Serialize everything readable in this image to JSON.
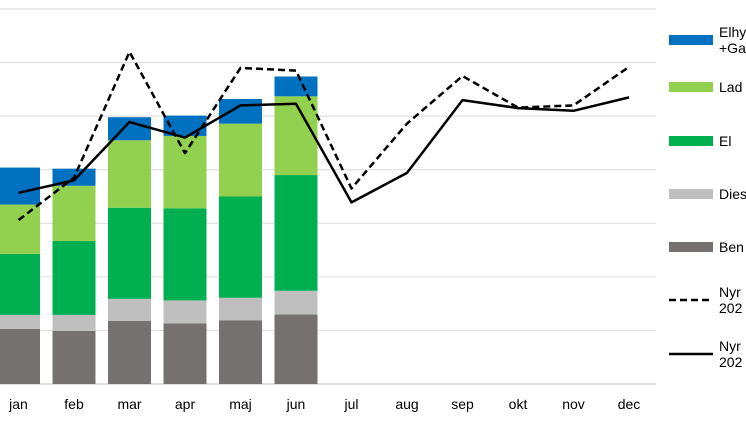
{
  "chart_data": {
    "type": "bar",
    "stacked": true,
    "categories": [
      "jan",
      "feb",
      "mar",
      "apr",
      "maj",
      "jun",
      "jul",
      "aug",
      "sep",
      "okt",
      "nov",
      "dec"
    ],
    "ylim": [
      0,
      7000
    ],
    "grid": true,
    "legend_position": "right",
    "series": [
      {
        "name": "Ben",
        "kind": "bar",
        "color": "#757171",
        "values": [
          1030,
          990,
          1180,
          1130,
          1190,
          1300,
          null,
          null,
          null,
          null,
          null,
          null
        ]
      },
      {
        "name": "Dies",
        "kind": "bar",
        "color": "#bfbfbf",
        "values": [
          260,
          300,
          410,
          430,
          420,
          440,
          null,
          null,
          null,
          null,
          null,
          null
        ]
      },
      {
        "name": "El",
        "kind": "bar",
        "color": "#00b050",
        "values": [
          1140,
          1380,
          1700,
          1720,
          1890,
          2160,
          null,
          null,
          null,
          null,
          null,
          null
        ]
      },
      {
        "name": "Lad",
        "kind": "bar",
        "color": "#92d050",
        "values": [
          920,
          1030,
          1260,
          1350,
          1360,
          1470,
          null,
          null,
          null,
          null,
          null,
          null
        ]
      },
      {
        "name": "Elhy\n+Ga",
        "kind": "bar",
        "color": "#0070c0",
        "values": [
          690,
          320,
          430,
          380,
          460,
          370,
          null,
          null,
          null,
          null,
          null,
          null
        ]
      },
      {
        "name": "Nyr\n202",
        "kind": "line",
        "style": "dashed",
        "color": "#000000",
        "values": [
          3060,
          3850,
          6200,
          4310,
          5900,
          5850,
          3650,
          4860,
          5750,
          5160,
          5200,
          5920
        ]
      },
      {
        "name": "Nyr\n202",
        "kind": "line",
        "style": "solid",
        "color": "#000000",
        "values": [
          3570,
          3800,
          4890,
          4600,
          5200,
          5230,
          3390,
          3940,
          5300,
          5150,
          5100,
          5350
        ]
      }
    ]
  }
}
